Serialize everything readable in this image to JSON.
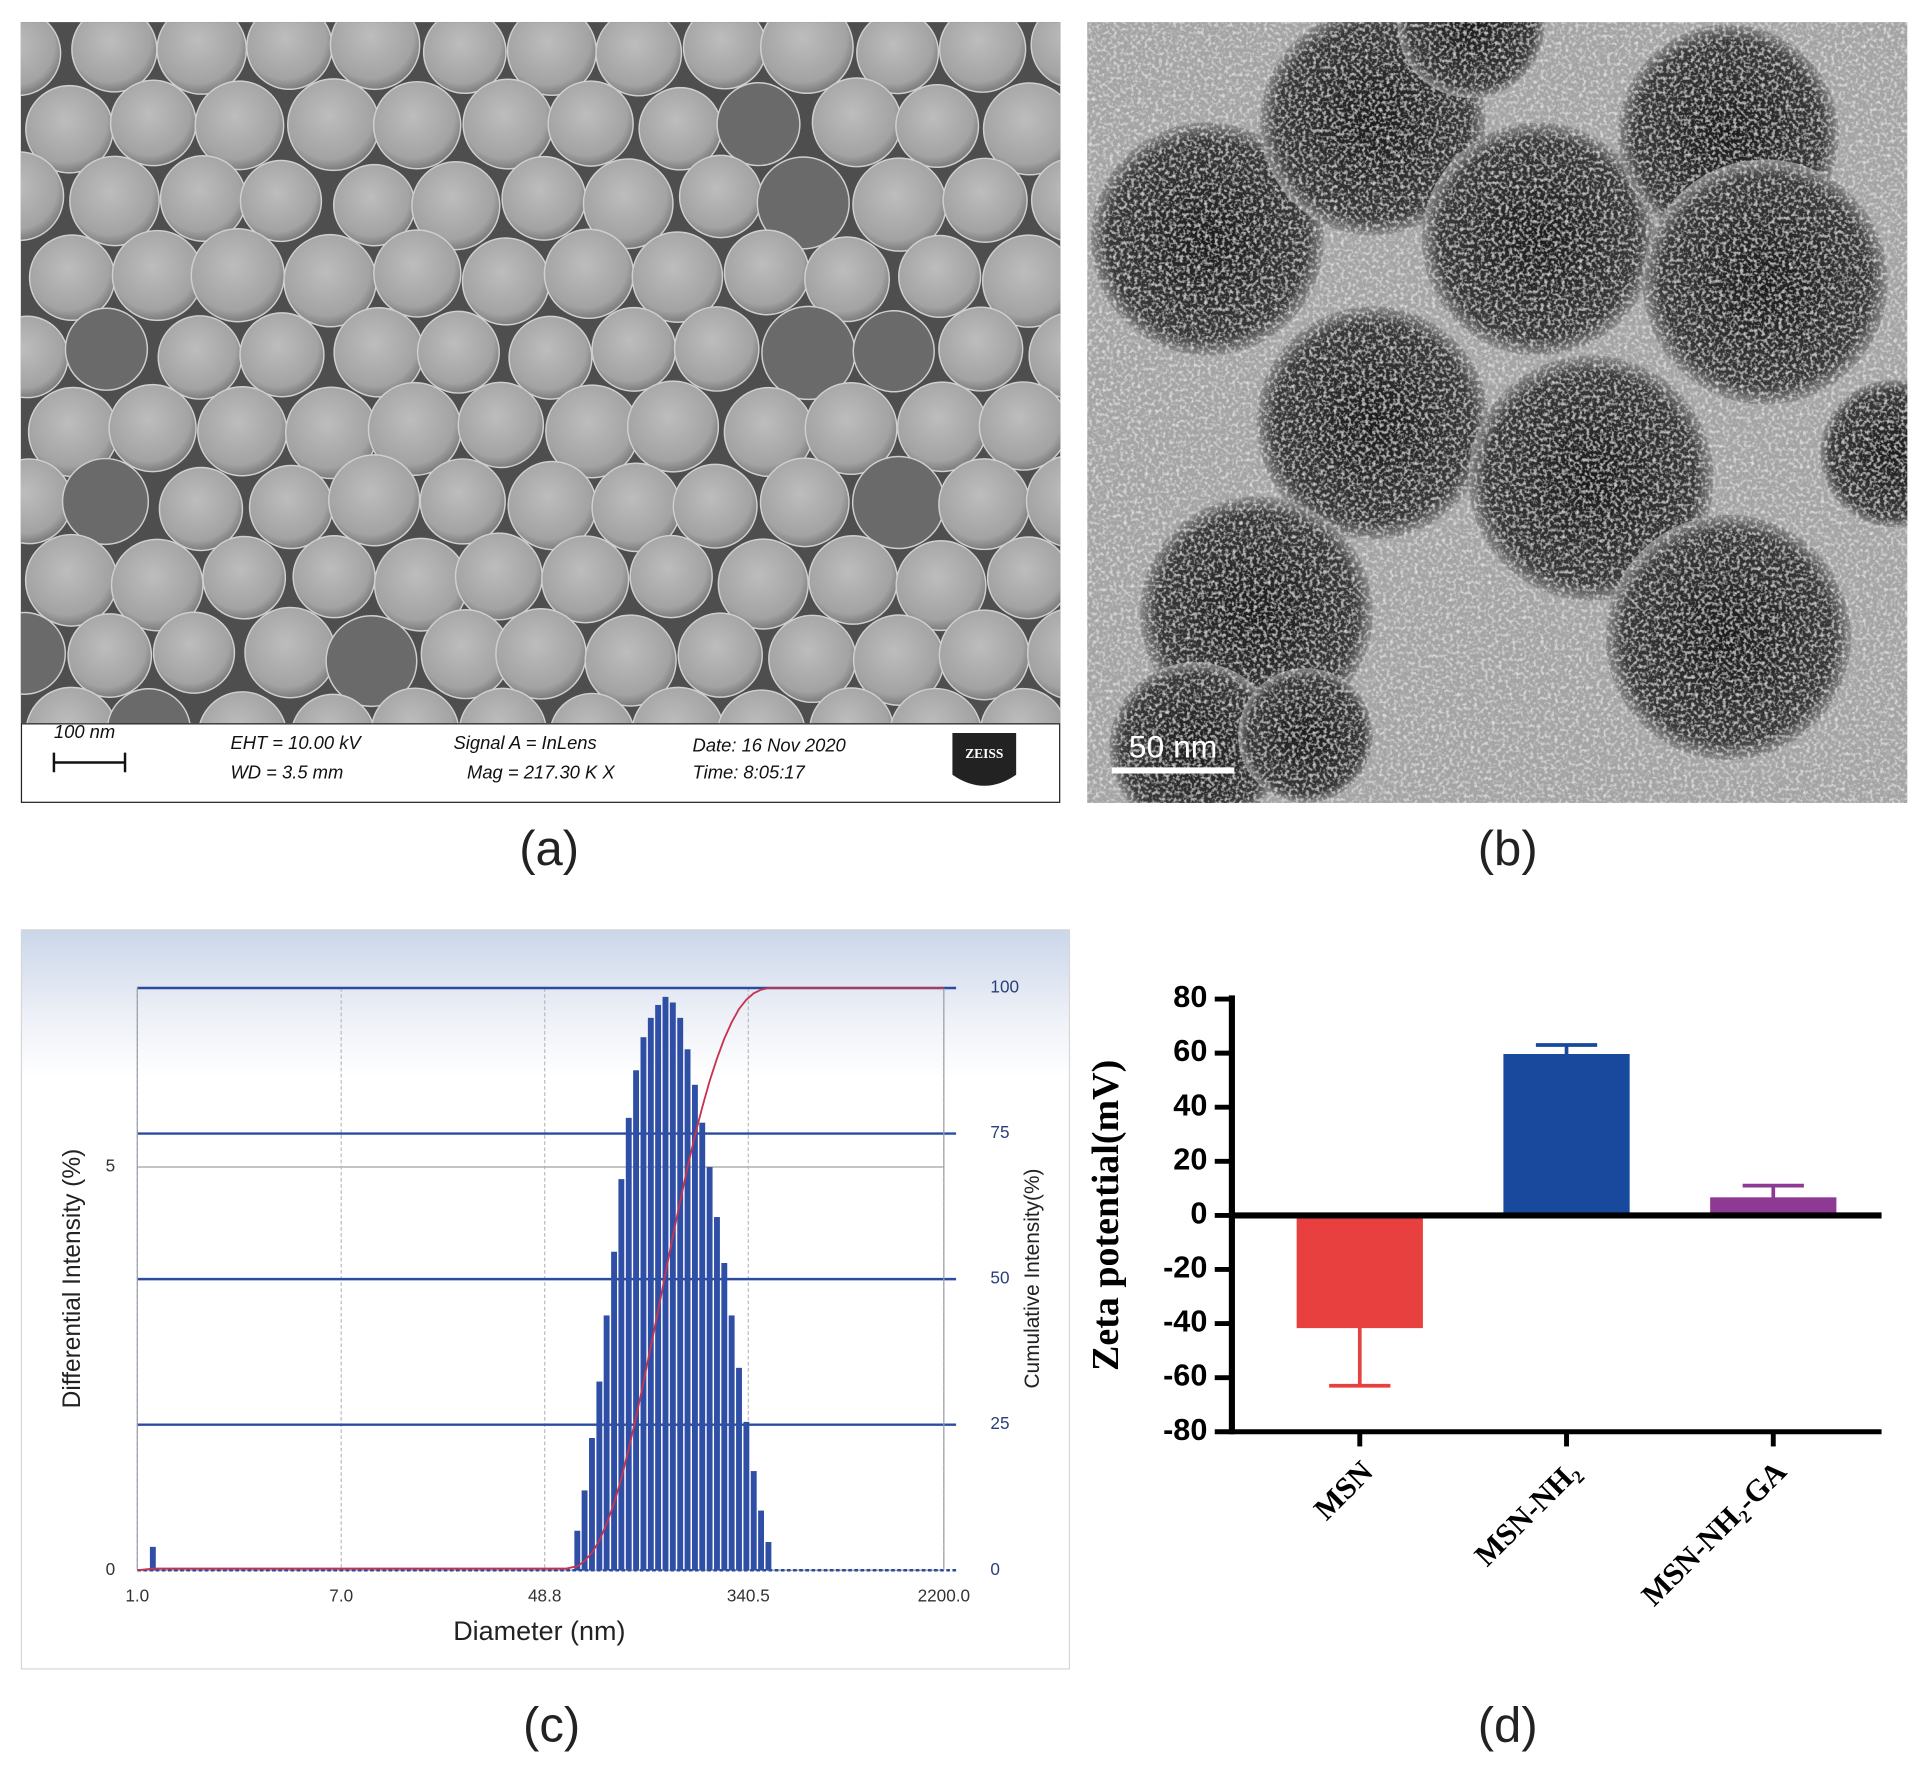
{
  "panel_labels": [
    "(a)",
    "(b)",
    "(c)",
    "(d)"
  ],
  "sem_image": {
    "scale_bar": "100 nm",
    "eht": "EHT = 10.00 kV",
    "wd": "WD =  3.5 mm",
    "signal": "Signal A = InLens",
    "mag": "Mag =  217.30 K X",
    "date": "Date: 16 Nov 2020",
    "time": "Time: 8:05:17",
    "brand": "ZEISS"
  },
  "tem_image": {
    "scale_bar": "50  nm"
  },
  "chart_data": [
    {
      "type": "histogram-line",
      "xlabel": "Diameter (nm)",
      "ylabel": "Differential Intensity (%)",
      "y2label": "Cumulative Intensity(%)",
      "xscale": "log",
      "xlim": [
        1,
        2200
      ],
      "xticks": [
        {
          "value": 1,
          "label": "1.0"
        },
        {
          "value": 7,
          "label": "7.0"
        },
        48.8,
        340.5,
        {
          "value": 2200,
          "label": "2200.0"
        }
      ],
      "ylim": [
        0,
        7.22
      ],
      "yticks": [
        0,
        5
      ],
      "y2lim": [
        0,
        100
      ],
      "y2ticks": [
        0,
        25,
        50,
        75,
        100
      ],
      "grid": true,
      "series": [
        {
          "type": "bar",
          "color": "#2f4ea6",
          "x": [
            1.16,
            66.6,
            71.4,
            76.6,
            82.2,
            88.1,
            94.6,
            101.4,
            108.8,
            116.7,
            125.2,
            134.3,
            144.0,
            154.5,
            165.7,
            177.8,
            190.7,
            204.6,
            219.4,
            235.4,
            252.5,
            270.8,
            290.5,
            311.6,
            334.3,
            358.6,
            384.6,
            412.6
          ],
          "values": [
            0.29,
            0.49,
            0.99,
            1.64,
            2.34,
            3.16,
            3.95,
            4.85,
            5.61,
            6.2,
            6.61,
            6.85,
            7.01,
            7.11,
            7.04,
            6.85,
            6.46,
            6.02,
            5.55,
            5.0,
            4.38,
            3.81,
            3.16,
            2.51,
            1.84,
            1.23,
            0.74,
            0.35
          ]
        },
        {
          "type": "line",
          "axis": "y2",
          "color": "#c8344f",
          "x": [
            1,
            1.16,
            60,
            66.6,
            71.4,
            76.6,
            82.2,
            88.1,
            94.6,
            101.4,
            108.8,
            116.7,
            125.2,
            134.3,
            144.0,
            154.5,
            165.7,
            177.8,
            190.7,
            204.6,
            219.4,
            235.4,
            252.5,
            270.8,
            290.5,
            311.6,
            334.3,
            358.6,
            384.6,
            412.6,
            2200
          ],
          "values": [
            0,
            0.3,
            0.3,
            0.7,
            1.6,
            3.0,
            5.1,
            8.0,
            11.5,
            15.8,
            20.8,
            26.3,
            32.2,
            38.4,
            44.6,
            51.0,
            57.3,
            63.4,
            69.2,
            74.6,
            79.5,
            84.0,
            87.9,
            91.3,
            94.1,
            96.4,
            98.0,
            99.1,
            99.7,
            100,
            100
          ]
        }
      ]
    },
    {
      "type": "bar",
      "ylabel": "Zeta potential(mV)",
      "categories": [
        "MSN",
        "MSN-NH₂",
        "MSN-NH₂-GA"
      ],
      "values": [
        -41,
        59,
        6
      ],
      "errors": [
        22,
        4,
        5
      ],
      "colors": [
        "#e8403f",
        "#18499c",
        "#8e3a95"
      ],
      "ylim": [
        -80,
        80
      ],
      "yticks": [
        -80,
        -60,
        -40,
        -20,
        0,
        20,
        40,
        60,
        80
      ]
    }
  ]
}
